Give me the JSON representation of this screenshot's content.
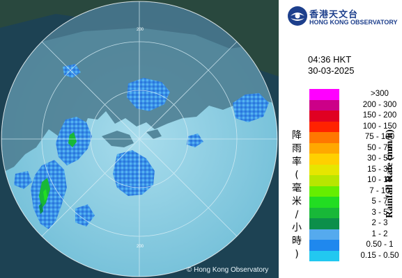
{
  "logo": {
    "name_zh": "香港天文台",
    "name_en": "HONG KONG OBSERVATORY",
    "mark": "hko-logo-icon"
  },
  "time": "04:36 HKT",
  "date": "30-03-2025",
  "legend": {
    "title_zh": "降雨率(毫米/小時)",
    "title_en": "Rainfall Rate (mm/h)",
    "classes": [
      {
        "label": ">300",
        "color": "#ff00ff"
      },
      {
        "label": "200 - 300",
        "color": "#cc0088"
      },
      {
        "label": "150 - 200",
        "color": "#e00022"
      },
      {
        "label": "100 - 150",
        "color": "#ff2200"
      },
      {
        "label": "75 - 100",
        "color": "#ff7700"
      },
      {
        "label": "50 - 75",
        "color": "#ffa800"
      },
      {
        "label": "30 - 50",
        "color": "#ffd000"
      },
      {
        "label": "15 - 30",
        "color": "#e6e600"
      },
      {
        "label": "10 - 15",
        "color": "#b8e600"
      },
      {
        "label": "7 - 10",
        "color": "#66ee00"
      },
      {
        "label": "5 - 7",
        "color": "#22dd22"
      },
      {
        "label": "3 - 5",
        "color": "#18b838"
      },
      {
        "label": "2 - 3",
        "color": "#0c8f4a"
      },
      {
        "label": "1 - 2",
        "color": "#55aaee"
      },
      {
        "label": "0.50 - 1",
        "color": "#1f88ee"
      },
      {
        "label": "0.15 - 0.50",
        "color": "#22c8f0"
      }
    ]
  },
  "map": {
    "credit": "© Hong Kong Observatory",
    "range_ring_label": "200"
  }
}
